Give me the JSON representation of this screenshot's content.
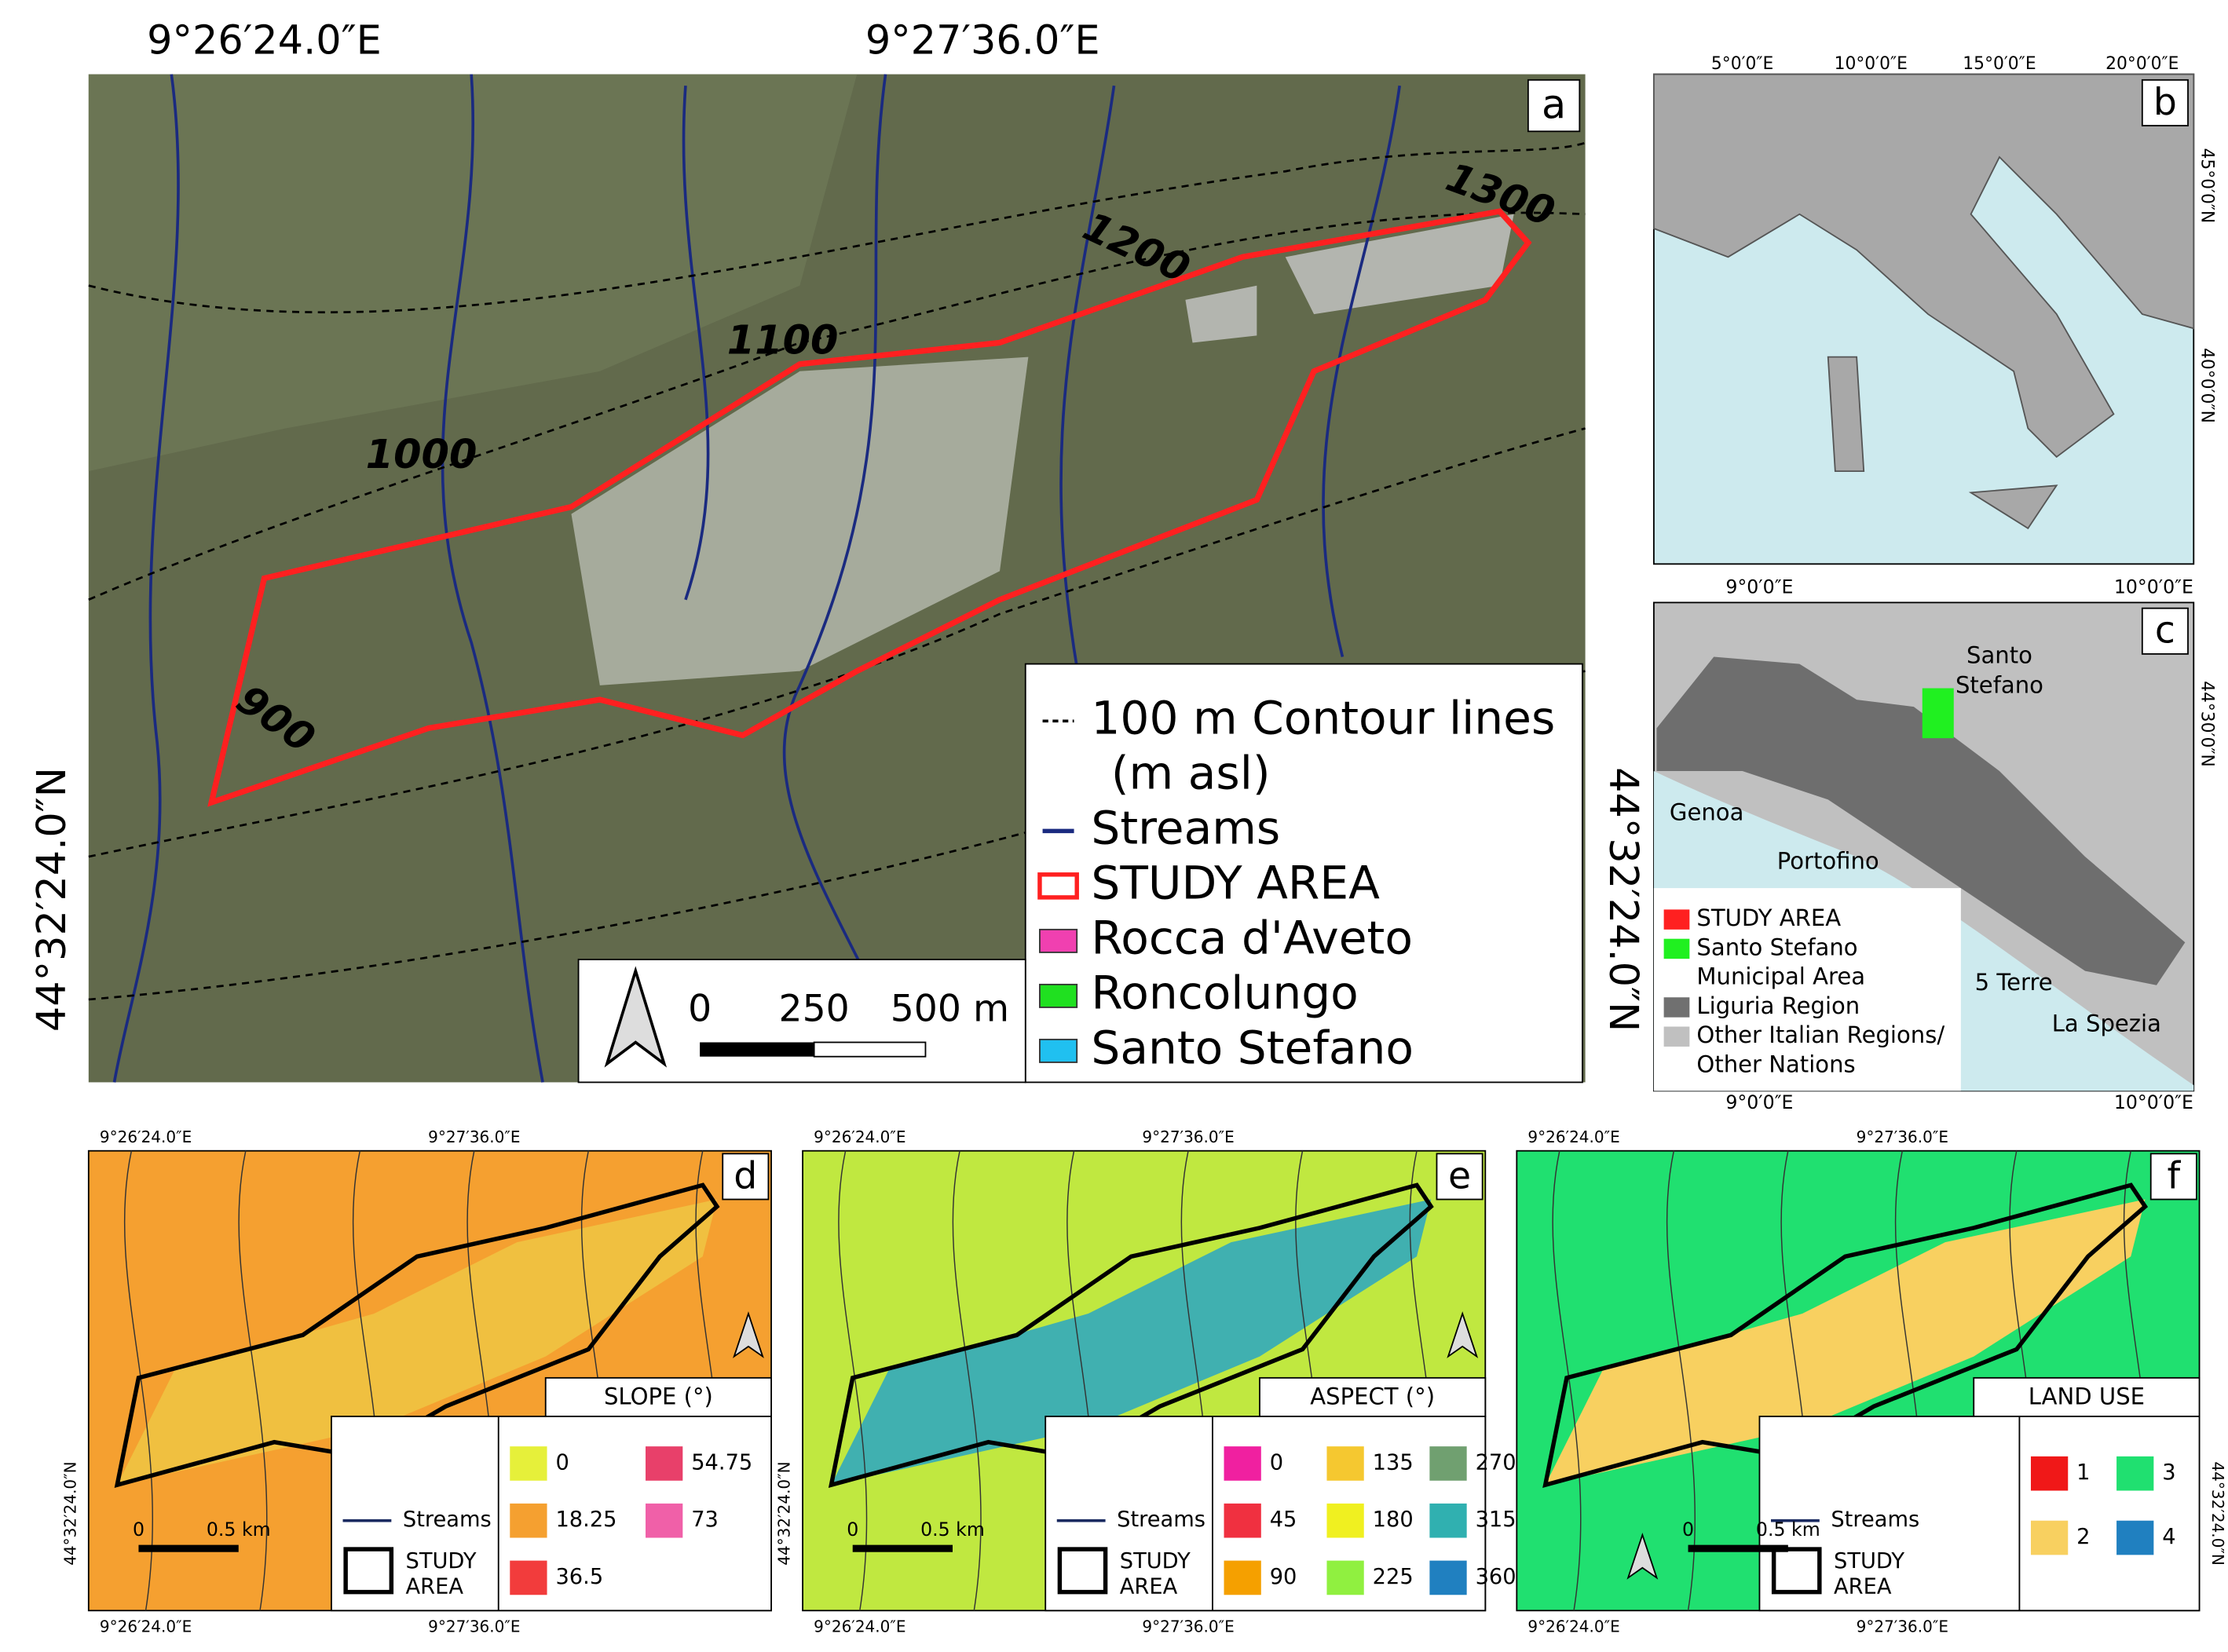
{
  "panel_a": {
    "label": "a",
    "top_coords": [
      "9°26′24.0″E",
      "9°27′36.0″E"
    ],
    "left_coord": "44°32′24.0″N",
    "right_coord": "44°32′24.0″N",
    "contours": [
      "1300",
      "1200",
      "1100",
      "1000",
      "900"
    ],
    "legend": [
      {
        "label": "100 m Contour lines",
        "color": "#000000"
      },
      {
        "label": "(m asl)"
      },
      {
        "label": "Streams",
        "color": "#1a2a80"
      },
      {
        "label": "STUDY AREA",
        "color": "#ff2020"
      },
      {
        "label": "Rocca d'Aveto",
        "color": "#f040b0"
      },
      {
        "label": "Roncolungo",
        "color": "#20e020"
      },
      {
        "label": "Santo Stefano",
        "color": "#20c0f0"
      }
    ],
    "scale": [
      "0",
      "250",
      "500 m"
    ]
  },
  "panel_b": {
    "label": "b",
    "top_coords": [
      "5°0′0″E",
      "10°0′0″E",
      "15°0′0″E",
      "20°0′0″E"
    ],
    "right_coords": [
      "45°0′0″N",
      "40°0′0″N"
    ]
  },
  "panel_c": {
    "label": "c",
    "top_coords": [
      "9°0′0″E",
      "10°0′0″E"
    ],
    "bottom_coords": [
      "9°0′0″E",
      "10°0′0″E"
    ],
    "right_coord": "44°30′0″N",
    "places": [
      "Santo",
      "Stefano",
      "Genoa",
      "Portofino",
      "5 Terre",
      "La Spezia"
    ],
    "legend": [
      {
        "label": "STUDY AREA",
        "color": "#ff2020"
      },
      {
        "label": "Santo Stefano",
        "color": "#20f020"
      },
      {
        "label": "Municipal Area"
      },
      {
        "label": "Liguria Region",
        "color": "#707070"
      },
      {
        "label": "Other Italian Regions/",
        "color": "#c0c0c0"
      },
      {
        "label": "Other Nations"
      }
    ]
  },
  "panels": [
    {
      "label": "d",
      "title": "SLOPE (°)",
      "top_coords": [
        "9°26′24.0″E",
        "9°27′36.0″E"
      ],
      "bottom_coords": [
        "9°26′24.0″E",
        "9°27′36.0″E"
      ],
      "left_coord": "44°32′24.0″N",
      "streams": "Streams",
      "study_area": [
        "STUDY",
        "AREA"
      ],
      "scale": [
        "0",
        "0.5 km"
      ],
      "classes": [
        {
          "label": "0",
          "color": "#e6f03a"
        },
        {
          "label": "18.25",
          "color": "#f5a030"
        },
        {
          "label": "36.5",
          "color": "#f23c3c"
        },
        {
          "label": "54.75",
          "color": "#e8406a"
        },
        {
          "label": "73",
          "color": "#f060a8"
        }
      ]
    },
    {
      "label": "e",
      "title": "ASPECT (°)",
      "top_coords": [
        "9°26′24.0″E",
        "9°27′36.0″E"
      ],
      "bottom_coords": [
        "9°26′24.0″E",
        "9°27′36.0″E"
      ],
      "left_coord": "44°32′24.0″N",
      "streams": "Streams",
      "study_area": [
        "STUDY",
        "AREA"
      ],
      "scale": [
        "0",
        "0.5 km"
      ],
      "classes": [
        {
          "label": "0",
          "color": "#f020a0"
        },
        {
          "label": "45",
          "color": "#f03040"
        },
        {
          "label": "90",
          "color": "#f5a000"
        },
        {
          "label": "135",
          "color": "#f5c830"
        },
        {
          "label": "180",
          "color": "#f0f020"
        },
        {
          "label": "225",
          "color": "#90f040"
        },
        {
          "label": "270",
          "color": "#70a070"
        },
        {
          "label": "315",
          "color": "#30b0b0"
        },
        {
          "label": "360",
          "color": "#2080c0"
        }
      ]
    },
    {
      "label": "f",
      "title": "LAND USE",
      "top_coords": [
        "9°26′24.0″E",
        "9°27′36.0″E"
      ],
      "bottom_coords": [
        "9°26′24.0″E",
        "9°27′36.0″E"
      ],
      "left_coord": "44°32′24.0″N",
      "streams": "Streams",
      "study_area": [
        "STUDY",
        "AREA"
      ],
      "scale": [
        "0",
        "0.5 km"
      ],
      "classes": [
        {
          "label": "1",
          "color": "#f01818"
        },
        {
          "label": "2",
          "color": "#f8d060"
        },
        {
          "label": "3",
          "color": "#20e070"
        },
        {
          "label": "4",
          "color": "#2080c0"
        }
      ]
    }
  ]
}
